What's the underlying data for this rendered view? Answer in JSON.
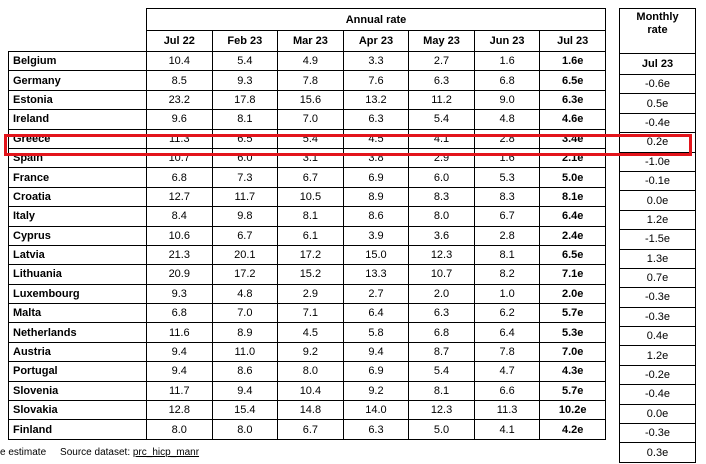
{
  "header": {
    "annual_label": "Annual rate",
    "monthly_label_1": "Monthly",
    "monthly_label_2": "rate",
    "annual_columns": [
      "Jul 22",
      "Feb 23",
      "Mar 23",
      "Apr 23",
      "May 23",
      "Jun 23",
      "Jul 23"
    ],
    "monthly_column": "Jul 23"
  },
  "rows": [
    {
      "country": "Belgium",
      "values": [
        "10.4",
        "5.4",
        "4.9",
        "3.3",
        "2.7",
        "1.6",
        "1.6e"
      ],
      "monthly": "-0.6e"
    },
    {
      "country": "Germany",
      "values": [
        "8.5",
        "9.3",
        "7.8",
        "7.6",
        "6.3",
        "6.8",
        "6.5e"
      ],
      "monthly": "0.5e"
    },
    {
      "country": "Estonia",
      "values": [
        "23.2",
        "17.8",
        "15.6",
        "13.2",
        "11.2",
        "9.0",
        "6.3e"
      ],
      "monthly": "-0.4e"
    },
    {
      "country": "Ireland",
      "values": [
        "9.6",
        "8.1",
        "7.0",
        "6.3",
        "5.4",
        "4.8",
        "4.6e"
      ],
      "monthly": "0.2e"
    },
    {
      "country": "Greece",
      "values": [
        "11.3",
        "6.5",
        "5.4",
        "4.5",
        "4.1",
        "2.8",
        "3.4e"
      ],
      "monthly": "-1.0e"
    },
    {
      "country": "Spain",
      "values": [
        "10.7",
        "6.0",
        "3.1",
        "3.8",
        "2.9",
        "1.6",
        "2.1e"
      ],
      "monthly": "-0.1e"
    },
    {
      "country": "France",
      "values": [
        "6.8",
        "7.3",
        "6.7",
        "6.9",
        "6.0",
        "5.3",
        "5.0e"
      ],
      "monthly": "0.0e"
    },
    {
      "country": "Croatia",
      "values": [
        "12.7",
        "11.7",
        "10.5",
        "8.9",
        "8.3",
        "8.3",
        "8.1e"
      ],
      "monthly": "1.2e"
    },
    {
      "country": "Italy",
      "values": [
        "8.4",
        "9.8",
        "8.1",
        "8.6",
        "8.0",
        "6.7",
        "6.4e"
      ],
      "monthly": "-1.5e"
    },
    {
      "country": "Cyprus",
      "values": [
        "10.6",
        "6.7",
        "6.1",
        "3.9",
        "3.6",
        "2.8",
        "2.4e"
      ],
      "monthly": "1.3e"
    },
    {
      "country": "Latvia",
      "values": [
        "21.3",
        "20.1",
        "17.2",
        "15.0",
        "12.3",
        "8.1",
        "6.5e"
      ],
      "monthly": "0.7e"
    },
    {
      "country": "Lithuania",
      "values": [
        "20.9",
        "17.2",
        "15.2",
        "13.3",
        "10.7",
        "8.2",
        "7.1e"
      ],
      "monthly": "-0.3e"
    },
    {
      "country": "Luxembourg",
      "values": [
        "9.3",
        "4.8",
        "2.9",
        "2.7",
        "2.0",
        "1.0",
        "2.0e"
      ],
      "monthly": "-0.3e"
    },
    {
      "country": "Malta",
      "values": [
        "6.8",
        "7.0",
        "7.1",
        "6.4",
        "6.3",
        "6.2",
        "5.7e"
      ],
      "monthly": "0.4e"
    },
    {
      "country": "Netherlands",
      "values": [
        "11.6",
        "8.9",
        "4.5",
        "5.8",
        "6.8",
        "6.4",
        "5.3e"
      ],
      "monthly": "1.2e"
    },
    {
      "country": "Austria",
      "values": [
        "9.4",
        "11.0",
        "9.2",
        "9.4",
        "8.7",
        "7.8",
        "7.0e"
      ],
      "monthly": "-0.2e"
    },
    {
      "country": "Portugal",
      "values": [
        "9.4",
        "8.6",
        "8.0",
        "6.9",
        "5.4",
        "4.7",
        "4.3e"
      ],
      "monthly": "-0.4e"
    },
    {
      "country": "Slovenia",
      "values": [
        "11.7",
        "9.4",
        "10.4",
        "9.2",
        "8.1",
        "6.6",
        "5.7e"
      ],
      "monthly": "0.0e"
    },
    {
      "country": "Slovakia",
      "values": [
        "12.8",
        "15.4",
        "14.8",
        "14.0",
        "12.3",
        "11.3",
        "10.2e"
      ],
      "monthly": "-0.3e"
    },
    {
      "country": "Finland",
      "values": [
        "8.0",
        "8.0",
        "6.7",
        "6.3",
        "5.0",
        "4.1",
        "4.2e"
      ],
      "monthly": "0.3e"
    }
  ],
  "footnote": {
    "estimate": "e estimate",
    "source_label": "Source dataset:",
    "source_link": "prc_hicp_manr"
  },
  "colors": {
    "highlight": "#e3141b"
  }
}
